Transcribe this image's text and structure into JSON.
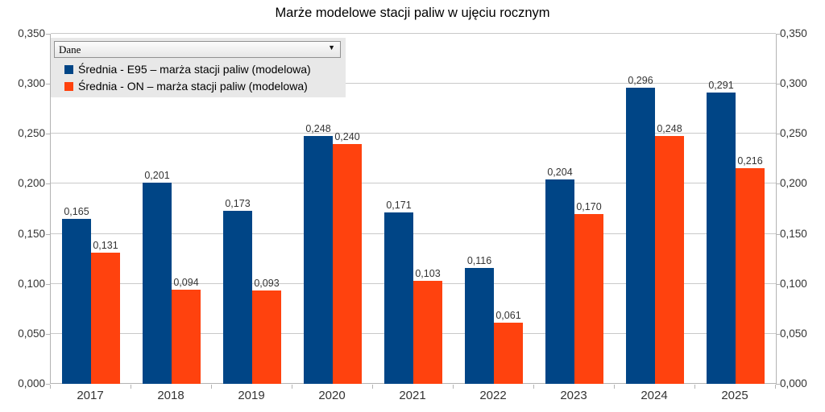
{
  "title": "Marże modelowe stacji paliw w ujęciu rocznym",
  "legend": {
    "dropdown_label": "Dane",
    "dropdown_arrow": "▼",
    "entries": [
      {
        "label": "Średnia - E95 – marża stacji paliw (modelowa)",
        "color": "#004586"
      },
      {
        "label": "Średnia - ON – marża stacji paliw (modelowa)",
        "color": "#FF420E"
      }
    ]
  },
  "chart_data": {
    "type": "bar",
    "title": "Marże modelowe stacji paliw w ujęciu rocznym",
    "categories": [
      "2017",
      "2018",
      "2019",
      "2020",
      "2021",
      "2022",
      "2023",
      "2024",
      "2025"
    ],
    "series": [
      {
        "name": "Średnia - E95 – marża stacji paliw (modelowa)",
        "key": "e95",
        "color": "#004586",
        "values": [
          0.165,
          0.201,
          0.173,
          0.248,
          0.171,
          0.116,
          0.204,
          0.296,
          0.291
        ],
        "labels": [
          "0,165",
          "0,201",
          "0,173",
          "0,248",
          "0,171",
          "0,116",
          "0,204",
          "0,296",
          "0,291"
        ]
      },
      {
        "name": "Średnia - ON – marża stacji paliw (modelowa)",
        "key": "on",
        "color": "#FF420E",
        "values": [
          0.131,
          0.094,
          0.093,
          0.24,
          0.103,
          0.061,
          0.17,
          0.248,
          0.216
        ],
        "labels": [
          "0,131",
          "0,094",
          "0,093",
          "0,240",
          "0,103",
          "0,061",
          "0,170",
          "0,248",
          "0,216"
        ]
      }
    ],
    "xlabel": "",
    "ylabel": "",
    "ylim": [
      0,
      0.35
    ],
    "ytick_values": [
      0,
      0.05,
      0.1,
      0.15,
      0.2,
      0.25,
      0.3,
      0.35
    ],
    "ytick_labels": [
      "0,000",
      "0,050",
      "0,100",
      "0,150",
      "0,200",
      "0,250",
      "0,300",
      "0,350"
    ],
    "grid": true,
    "y_axis_sides": "both",
    "legend_position": "top-left overlay"
  }
}
